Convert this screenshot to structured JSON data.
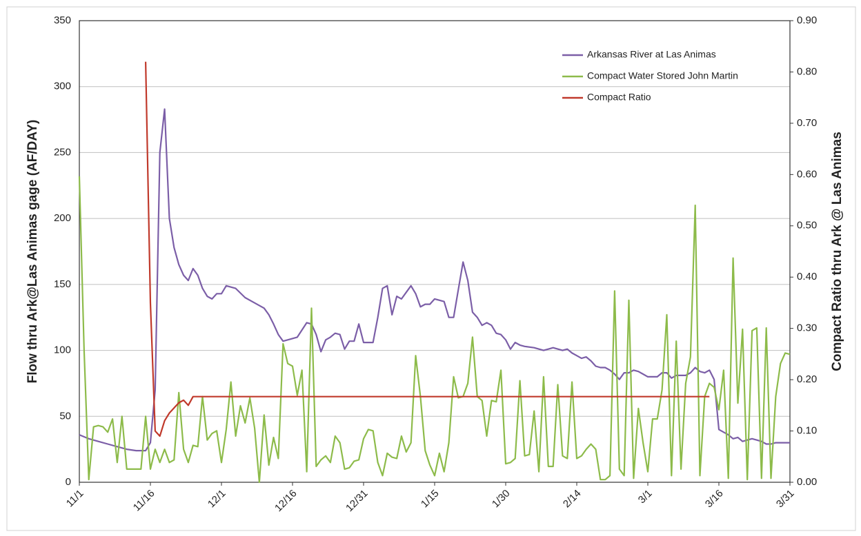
{
  "chart_data": {
    "type": "line",
    "ylabel": "Flow thru Ark@Las Animas gage  (AF/DAY)",
    "y2label": "Compact Ratio thru Ark @ Las Animas",
    "xlim": [
      0,
      150
    ],
    "xticks": [
      {
        "value": 0,
        "label": "11/1"
      },
      {
        "value": 15,
        "label": "11/16"
      },
      {
        "value": 30,
        "label": "12/1"
      },
      {
        "value": 45,
        "label": "12/16"
      },
      {
        "value": 60,
        "label": "12/31"
      },
      {
        "value": 75,
        "label": "1/15"
      },
      {
        "value": 90,
        "label": "1/30"
      },
      {
        "value": 105,
        "label": "2/14"
      },
      {
        "value": 120,
        "label": "3/1"
      },
      {
        "value": 135,
        "label": "3/16"
      },
      {
        "value": 150,
        "label": "3/31"
      }
    ],
    "ylim": [
      0,
      350
    ],
    "yticks": [
      0,
      50,
      100,
      150,
      200,
      250,
      300,
      350
    ],
    "y2lim": [
      0,
      0.9
    ],
    "y2ticks": [
      {
        "value": 0,
        "label": "0.00"
      },
      {
        "value": 0.1,
        "label": "0.10"
      },
      {
        "value": 0.2,
        "label": "0.20"
      },
      {
        "value": 0.3,
        "label": "0.30"
      },
      {
        "value": 0.4,
        "label": "0.40"
      },
      {
        "value": 0.5,
        "label": "0.50"
      },
      {
        "value": 0.6,
        "label": "0.60"
      },
      {
        "value": 0.7,
        "label": "0.70"
      },
      {
        "value": 0.8,
        "label": "0.80"
      },
      {
        "value": 0.9,
        "label": "0.90"
      }
    ],
    "grid": true,
    "legend": "upper right",
    "series": [
      {
        "name": "Arkansas River at Las Animas",
        "color": "#7b5ea7",
        "x": [
          0,
          2,
          4,
          6,
          8,
          10,
          12,
          14,
          15,
          16,
          17,
          18,
          19,
          20,
          21,
          22,
          23,
          24,
          25,
          26,
          27,
          28,
          29,
          30,
          31,
          33,
          35,
          37,
          39,
          40,
          41,
          42,
          43,
          44,
          46,
          48,
          49,
          50,
          51,
          52,
          53,
          54,
          55,
          56,
          57,
          58,
          59,
          60,
          62,
          63,
          64,
          65,
          66,
          67,
          68,
          69,
          70,
          71,
          72,
          73,
          74,
          75,
          76,
          77,
          78,
          79,
          80,
          81,
          82,
          83,
          84,
          85,
          86,
          87,
          88,
          89,
          90,
          91,
          92,
          93,
          94,
          96,
          98,
          99,
          100,
          102,
          103,
          104,
          105,
          106,
          107,
          108,
          109,
          110,
          111,
          112,
          113,
          114,
          115,
          116,
          117,
          118,
          119,
          120,
          121,
          122,
          123,
          124,
          125,
          126,
          127,
          128,
          129,
          130,
          131,
          132,
          133,
          134,
          135,
          136,
          137,
          138,
          139,
          140,
          141,
          142,
          143,
          144,
          145,
          146,
          147,
          148,
          150
        ],
        "values": [
          36,
          33,
          31,
          29,
          27,
          25,
          24,
          24,
          30,
          70,
          250,
          283,
          200,
          178,
          165,
          157,
          153,
          162,
          157,
          147,
          141,
          139,
          143,
          143,
          149,
          147,
          140,
          136,
          132,
          127,
          120,
          112,
          107,
          108,
          110,
          121,
          120,
          112,
          99,
          108,
          110,
          113,
          112,
          101,
          107,
          107,
          120,
          106,
          106,
          125,
          147,
          149,
          127,
          141,
          139,
          144,
          149,
          143,
          133,
          135,
          135,
          139,
          138,
          137,
          125,
          125,
          146,
          167,
          153,
          129,
          125,
          119,
          121,
          119,
          113,
          112,
          108,
          101,
          106,
          104,
          103,
          102,
          100,
          101,
          102,
          100,
          101,
          98,
          96,
          94,
          95,
          92,
          88,
          87,
          87,
          85,
          82,
          78,
          83,
          83,
          85,
          84,
          82,
          80,
          80,
          80,
          83,
          83,
          79,
          81,
          81,
          81,
          83,
          87,
          84,
          83,
          85,
          78,
          40,
          38,
          36,
          33,
          34,
          31,
          32,
          33,
          32,
          31,
          29,
          29,
          30,
          30,
          30
        ]
      },
      {
        "name": "Compact Water Stored John Martin",
        "color": "#8dbb4a",
        "x": [
          0,
          1,
          2,
          3,
          4,
          5,
          6,
          7,
          8,
          9,
          10,
          11,
          12,
          13,
          14,
          15,
          16,
          17,
          18,
          19,
          20,
          21,
          22,
          23,
          24,
          25,
          26,
          27,
          28,
          29,
          30,
          31,
          32,
          33,
          34,
          35,
          36,
          37,
          38,
          39,
          40,
          41,
          42,
          43,
          44,
          45,
          46,
          47,
          48,
          49,
          50,
          51,
          52,
          53,
          54,
          55,
          56,
          57,
          58,
          59,
          60,
          61,
          62,
          63,
          64,
          65,
          66,
          67,
          68,
          69,
          70,
          71,
          72,
          73,
          74,
          75,
          76,
          77,
          78,
          79,
          80,
          81,
          82,
          83,
          84,
          85,
          86,
          87,
          88,
          89,
          90,
          91,
          92,
          93,
          94,
          95,
          96,
          97,
          98,
          99,
          100,
          101,
          102,
          103,
          104,
          105,
          106,
          107,
          108,
          109,
          110,
          111,
          112,
          113,
          114,
          115,
          116,
          117,
          118,
          119,
          120,
          121,
          122,
          123,
          124,
          125,
          126,
          127,
          128,
          129,
          130,
          131,
          132,
          133,
          134,
          135,
          136,
          137,
          138,
          139,
          140,
          141,
          142,
          143,
          144,
          145,
          146,
          147,
          148,
          149,
          150
        ],
        "values": [
          232,
          100,
          2,
          42,
          43,
          42,
          38,
          48,
          15,
          50,
          10,
          10,
          10,
          10,
          50,
          10,
          25,
          15,
          25,
          15,
          17,
          68,
          25,
          15,
          28,
          27,
          65,
          32,
          37,
          39,
          15,
          40,
          76,
          35,
          58,
          45,
          64,
          41,
          0,
          51,
          13,
          34,
          18,
          105,
          90,
          88,
          66,
          85,
          8,
          132,
          12,
          17,
          20,
          15,
          35,
          30,
          10,
          11,
          16,
          17,
          33,
          40,
          39,
          15,
          5,
          22,
          19,
          18,
          35,
          23,
          30,
          96,
          65,
          24,
          13,
          5,
          22,
          8,
          30,
          80,
          64,
          65,
          75,
          110,
          65,
          62,
          35,
          62,
          61,
          85,
          14,
          15,
          18,
          77,
          20,
          21,
          54,
          8,
          80,
          12,
          12,
          74,
          20,
          18,
          76,
          18,
          20,
          25,
          29,
          25,
          2,
          2,
          5,
          145,
          10,
          5,
          138,
          3,
          56,
          30,
          8,
          48,
          48,
          70,
          127,
          5,
          107,
          10,
          75,
          95,
          210,
          5,
          65,
          75,
          72,
          55,
          85,
          3,
          170,
          60,
          116,
          2,
          115,
          117,
          3,
          117,
          3,
          65,
          90,
          98,
          97
        ]
      },
      {
        "name": "Compact Ratio",
        "color": "#c0392b",
        "axis": "y2",
        "x": [
          14,
          15,
          16,
          17,
          18,
          19,
          20,
          21,
          22,
          23,
          24,
          133
        ],
        "values": [
          0.82,
          0.35,
          0.1,
          0.09,
          0.12,
          0.135,
          0.145,
          0.155,
          0.16,
          0.15,
          0.167,
          0.167
        ]
      }
    ]
  }
}
